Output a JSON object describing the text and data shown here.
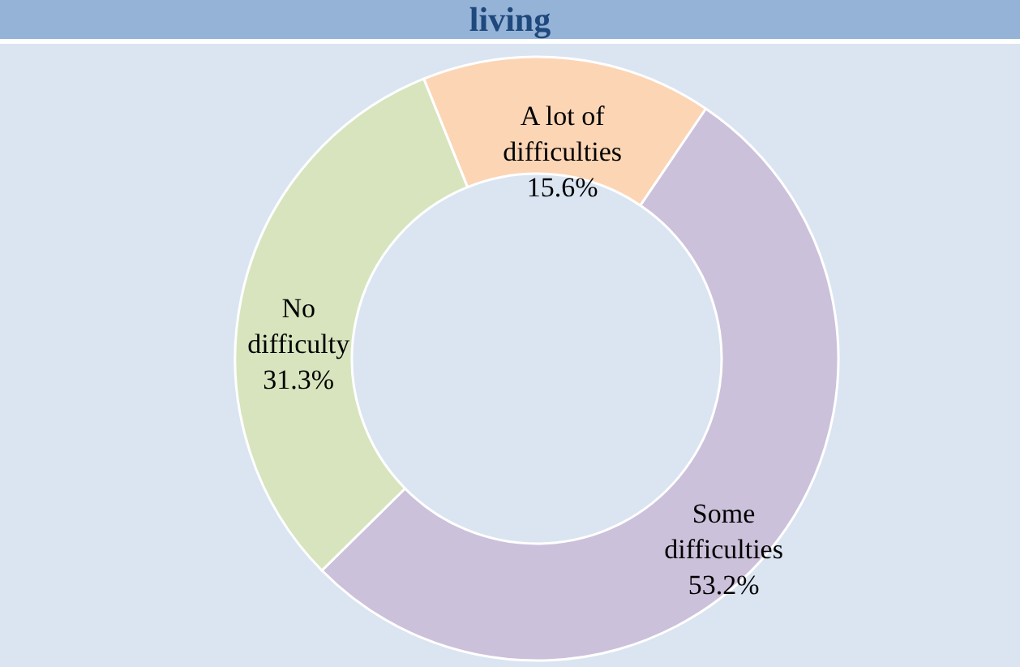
{
  "chart_data": {
    "type": "donut",
    "title": "living",
    "categories": [
      "A lot of difficulties",
      "Some difficulties",
      "No difficulty"
    ],
    "values": [
      15.6,
      53.2,
      31.3
    ],
    "value_labels": [
      "15.6%",
      "53.2%",
      "31.3%"
    ],
    "colors": [
      "#fcd5b5",
      "#ccc1da",
      "#d7e4bd"
    ]
  }
}
